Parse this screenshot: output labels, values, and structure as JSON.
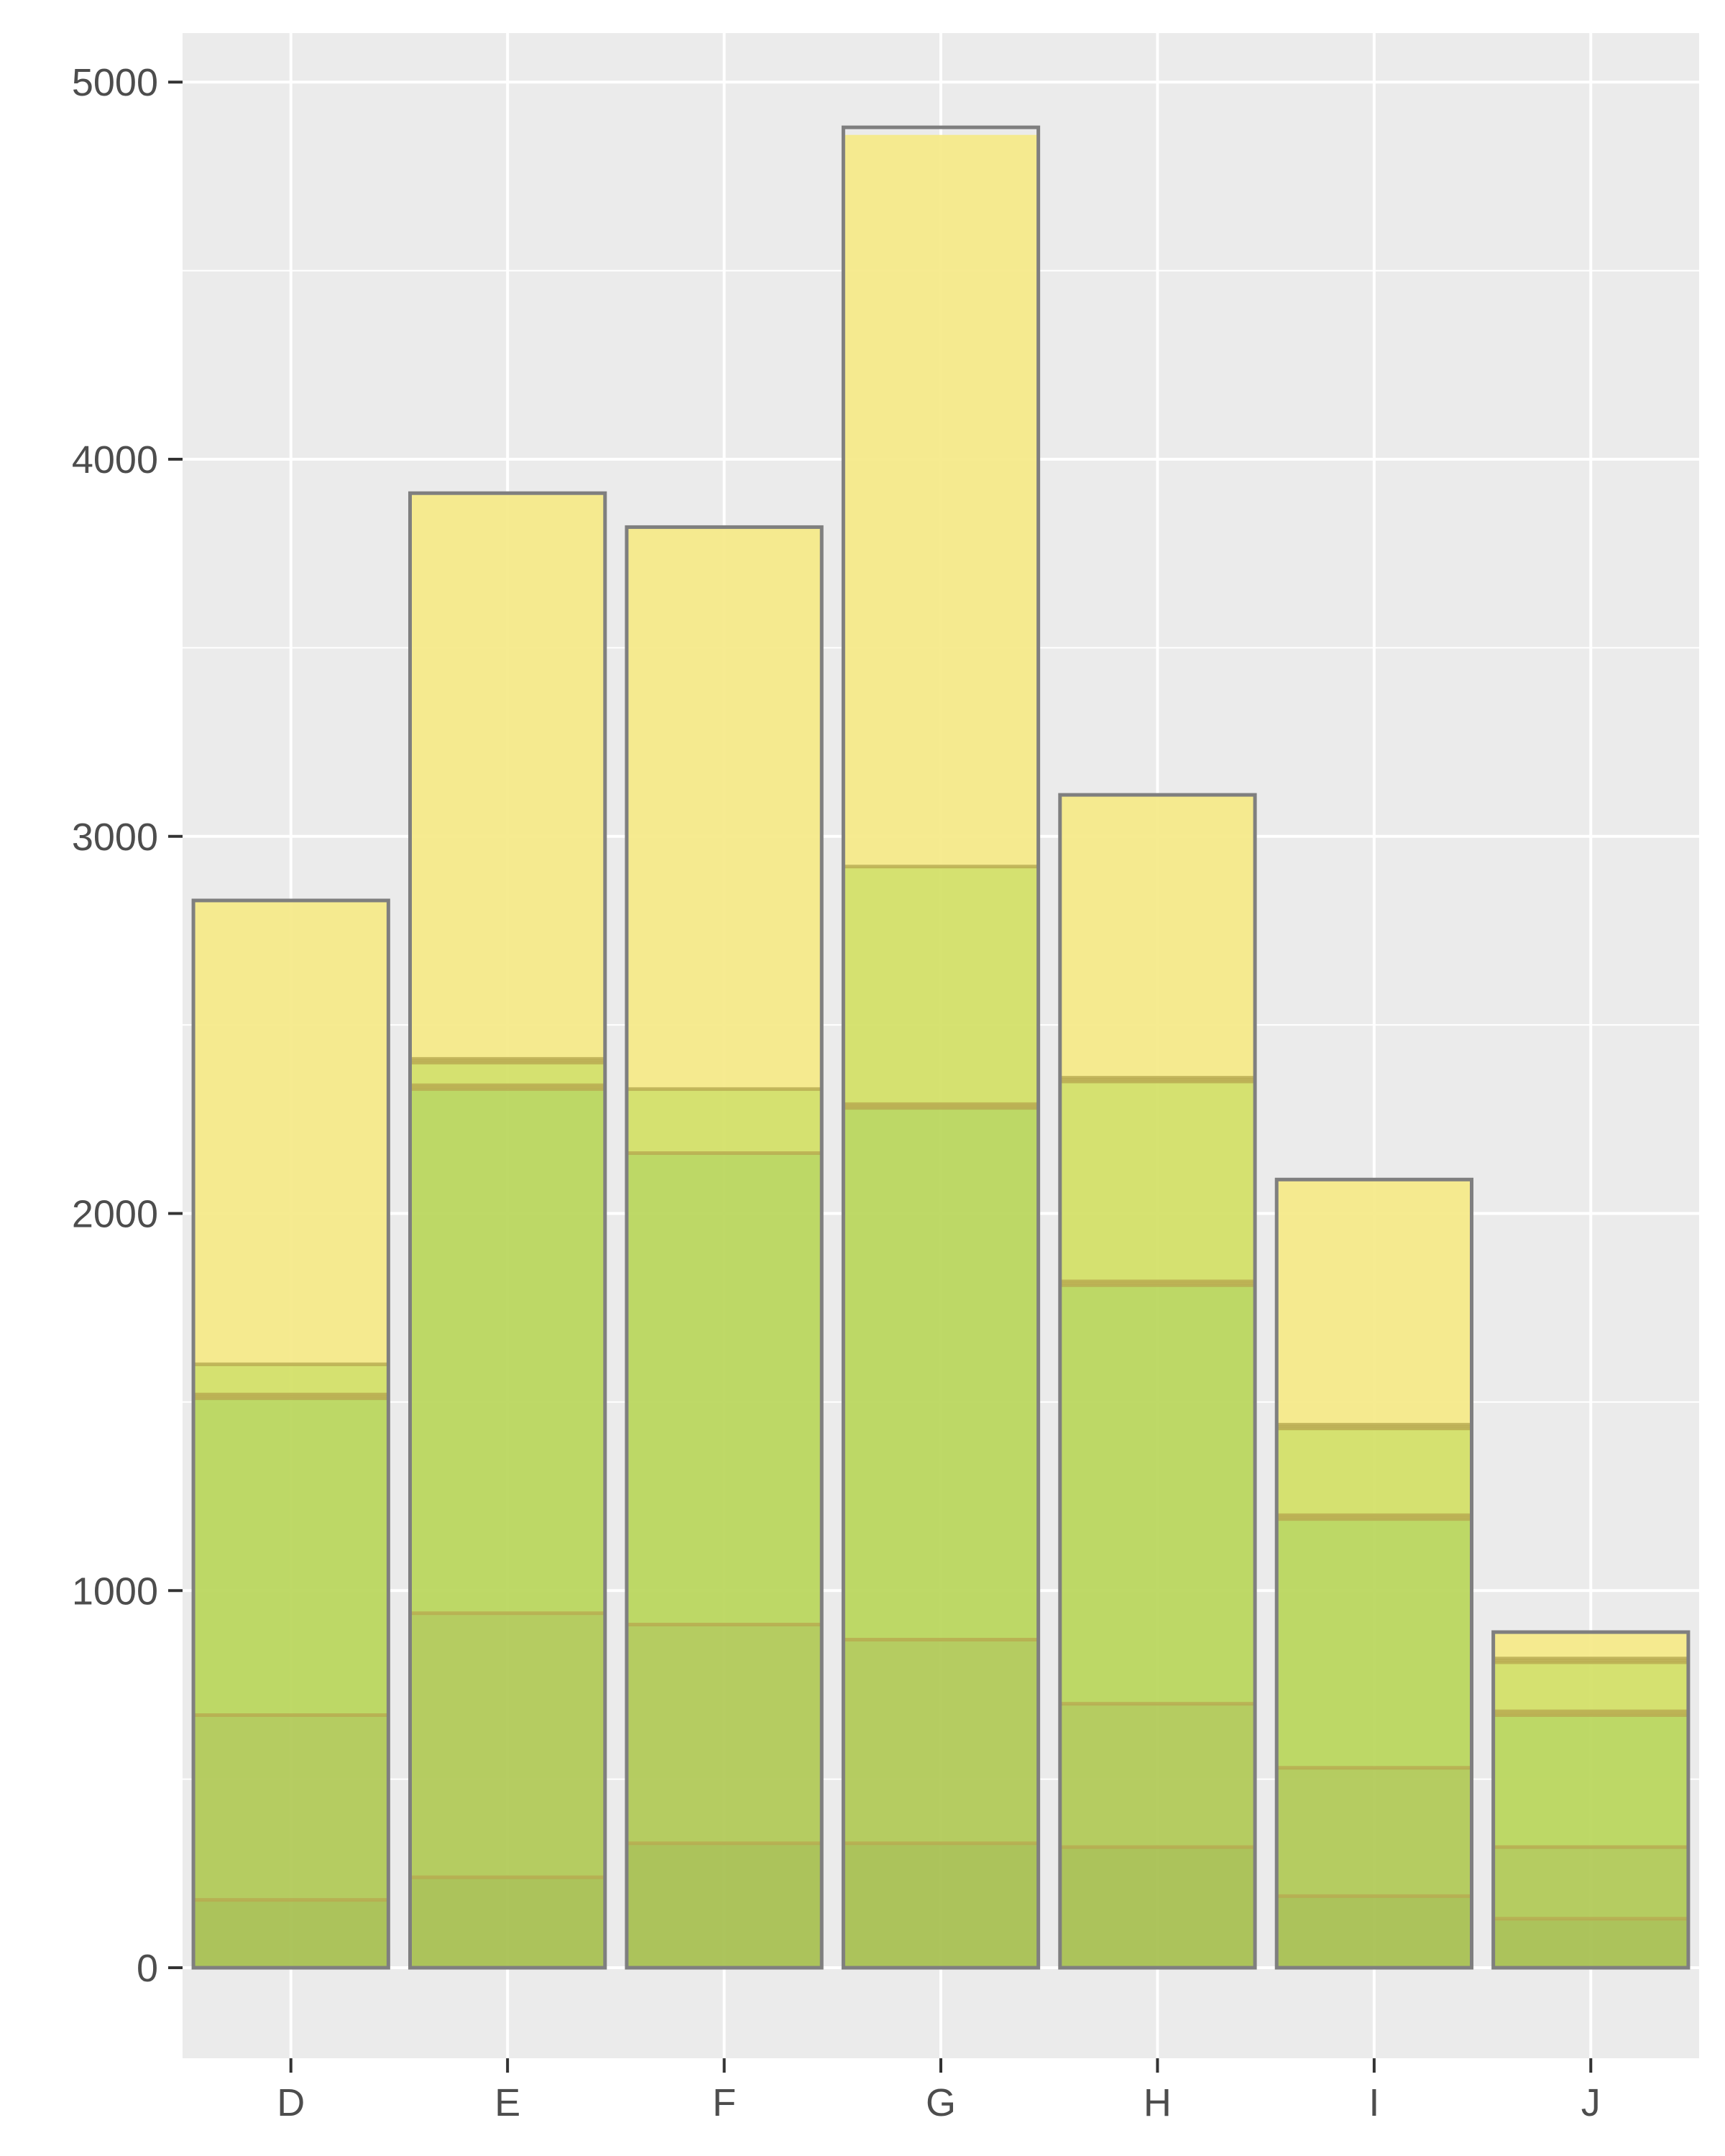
{
  "chart_data": {
    "type": "bar",
    "stacked": true,
    "title": "",
    "xlabel": "",
    "ylabel": "",
    "categories": [
      "D",
      "E",
      "F",
      "G",
      "H",
      "I",
      "J"
    ],
    "series": [
      {
        "values": [
          180,
          240,
          330,
          330,
          320,
          190,
          130
        ]
      },
      {
        "values": [
          490,
          700,
          580,
          540,
          380,
          340,
          190
        ]
      },
      {
        "values": [
          840,
          1390,
          1250,
          1410,
          1110,
          660,
          350
        ]
      },
      {
        "values": [
          10,
          10,
          0,
          10,
          10,
          10,
          10
        ]
      },
      {
        "values": [
          80,
          60,
          170,
          630,
          530,
          230,
          130
        ]
      },
      {
        "values": [
          0,
          10,
          0,
          0,
          10,
          10,
          10
        ]
      },
      {
        "values": [
          1230,
          1500,
          1490,
          1940,
          750,
          650,
          70
        ]
      }
    ],
    "totals": [
      2830,
      3910,
      3820,
      4880,
      3110,
      2090,
      890
    ],
    "ylim": [
      -240,
      5130
    ],
    "yticks": [
      0,
      1000,
      2000,
      3000,
      4000,
      5000
    ],
    "grid": true,
    "legend": "none",
    "colors": {
      "panel_background": "#ebebeb",
      "grid": "#ffffff",
      "bar_outline": "#7f7f7f",
      "tick_text": "#4d4d4d",
      "tick_mark": "#333333",
      "series_fills": [
        "#a6bf4e",
        "#b0c955",
        "#b9d65a",
        "#c2c255",
        "#d2e065",
        "#c9c060",
        "#f5e987"
      ]
    }
  }
}
